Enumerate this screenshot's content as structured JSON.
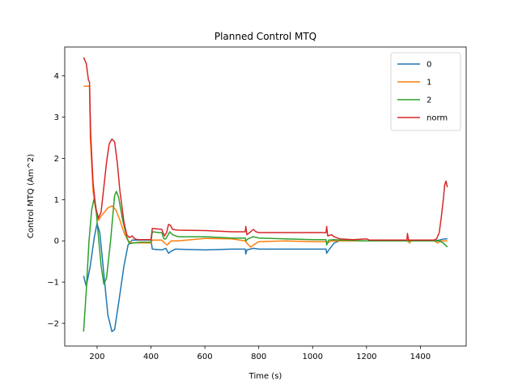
{
  "chart_data": {
    "type": "line",
    "title": "Planned Control MTQ",
    "xlabel": "Time (s)",
    "ylabel": "Control MTQ (Am^2)",
    "xlim": [
      80,
      1570
    ],
    "ylim": [
      -2.55,
      4.7
    ],
    "xticks": [
      200,
      400,
      600,
      800,
      1000,
      1200,
      1400
    ],
    "yticks": [
      -2,
      -1,
      0,
      1,
      2,
      3,
      4
    ],
    "xtick_labels": [
      "200",
      "400",
      "600",
      "800",
      "1000",
      "1200",
      "1400"
    ],
    "ytick_labels": [
      "−2",
      "−1",
      "0",
      "1",
      "2",
      "3",
      "4"
    ],
    "grid": false,
    "legend_position": "top-right",
    "series": [
      {
        "name": "0",
        "color": "#1f77b4",
        "points": [
          [
            150,
            -0.85
          ],
          [
            160,
            -1.1
          ],
          [
            175,
            -0.6
          ],
          [
            190,
            0.1
          ],
          [
            200,
            0.42
          ],
          [
            210,
            0.2
          ],
          [
            225,
            -0.8
          ],
          [
            240,
            -1.8
          ],
          [
            255,
            -2.2
          ],
          [
            265,
            -2.15
          ],
          [
            280,
            -1.5
          ],
          [
            300,
            -0.6
          ],
          [
            315,
            -0.1
          ],
          [
            330,
            0.02
          ],
          [
            350,
            0.02
          ],
          [
            400,
            0.02
          ],
          [
            405,
            -0.2
          ],
          [
            440,
            -0.22
          ],
          [
            455,
            -0.18
          ],
          [
            465,
            -0.3
          ],
          [
            475,
            -0.25
          ],
          [
            490,
            -0.2
          ],
          [
            600,
            -0.22
          ],
          [
            700,
            -0.2
          ],
          [
            750,
            -0.2
          ],
          [
            752,
            -0.32
          ],
          [
            756,
            -0.22
          ],
          [
            780,
            -0.18
          ],
          [
            800,
            -0.2
          ],
          [
            900,
            -0.2
          ],
          [
            1000,
            -0.2
          ],
          [
            1050,
            -0.2
          ],
          [
            1052,
            -0.3
          ],
          [
            1060,
            -0.22
          ],
          [
            1080,
            -0.05
          ],
          [
            1100,
            0.0
          ],
          [
            1200,
            0.0
          ],
          [
            1300,
            0.0
          ],
          [
            1350,
            0.0
          ],
          [
            1400,
            0.0
          ],
          [
            1450,
            0.0
          ],
          [
            1470,
            0.02
          ],
          [
            1490,
            0.05
          ],
          [
            1500,
            0.05
          ]
        ]
      },
      {
        "name": "1",
        "color": "#ff7f0e",
        "points": [
          [
            150,
            3.75
          ],
          [
            172,
            3.75
          ],
          [
            175,
            2.5
          ],
          [
            185,
            1.2
          ],
          [
            195,
            0.75
          ],
          [
            205,
            0.5
          ],
          [
            215,
            0.6
          ],
          [
            240,
            0.8
          ],
          [
            255,
            0.85
          ],
          [
            270,
            0.75
          ],
          [
            285,
            0.5
          ],
          [
            300,
            0.2
          ],
          [
            315,
            0.0
          ],
          [
            330,
            -0.05
          ],
          [
            350,
            -0.05
          ],
          [
            400,
            -0.05
          ],
          [
            405,
            0.02
          ],
          [
            440,
            0.02
          ],
          [
            450,
            -0.05
          ],
          [
            460,
            -0.1
          ],
          [
            475,
            0.0
          ],
          [
            500,
            0.0
          ],
          [
            600,
            0.06
          ],
          [
            700,
            0.05
          ],
          [
            750,
            0.0
          ],
          [
            755,
            -0.05
          ],
          [
            770,
            -0.15
          ],
          [
            785,
            -0.08
          ],
          [
            800,
            -0.02
          ],
          [
            900,
            0.0
          ],
          [
            1000,
            -0.02
          ],
          [
            1050,
            -0.02
          ],
          [
            1055,
            -0.05
          ],
          [
            1070,
            0.0
          ],
          [
            1100,
            0.0
          ],
          [
            1200,
            0.0
          ],
          [
            1300,
            0.0
          ],
          [
            1350,
            0.0
          ],
          [
            1360,
            -0.05
          ],
          [
            1365,
            0.0
          ],
          [
            1400,
            0.0
          ],
          [
            1450,
            0.0
          ],
          [
            1465,
            -0.05
          ],
          [
            1475,
            0.0
          ],
          [
            1500,
            0.0
          ]
        ]
      },
      {
        "name": "2",
        "color": "#2ca02c",
        "points": [
          [
            150,
            -2.2
          ],
          [
            160,
            -1.2
          ],
          [
            170,
            0.0
          ],
          [
            180,
            0.75
          ],
          [
            188,
            1.0
          ],
          [
            195,
            0.85
          ],
          [
            205,
            0.1
          ],
          [
            215,
            -0.6
          ],
          [
            225,
            -1.05
          ],
          [
            235,
            -0.9
          ],
          [
            250,
            0.0
          ],
          [
            265,
            1.1
          ],
          [
            272,
            1.2
          ],
          [
            280,
            1.05
          ],
          [
            295,
            0.5
          ],
          [
            310,
            0.1
          ],
          [
            320,
            -0.07
          ],
          [
            335,
            -0.05
          ],
          [
            360,
            -0.03
          ],
          [
            400,
            -0.03
          ],
          [
            405,
            0.22
          ],
          [
            430,
            0.2
          ],
          [
            440,
            0.2
          ],
          [
            448,
            0.05
          ],
          [
            455,
            0.05
          ],
          [
            470,
            0.22
          ],
          [
            480,
            0.15
          ],
          [
            500,
            0.1
          ],
          [
            600,
            0.1
          ],
          [
            700,
            0.07
          ],
          [
            750,
            0.07
          ],
          [
            752,
            0.0
          ],
          [
            760,
            0.05
          ],
          [
            780,
            0.1
          ],
          [
            800,
            0.07
          ],
          [
            900,
            0.05
          ],
          [
            1000,
            0.03
          ],
          [
            1050,
            0.03
          ],
          [
            1052,
            -0.1
          ],
          [
            1060,
            0.02
          ],
          [
            1080,
            0.03
          ],
          [
            1100,
            0.02
          ],
          [
            1200,
            0.0
          ],
          [
            1300,
            0.0
          ],
          [
            1400,
            0.0
          ],
          [
            1450,
            0.0
          ],
          [
            1470,
            0.0
          ],
          [
            1485,
            -0.05
          ],
          [
            1500,
            -0.15
          ]
        ]
      },
      {
        "name": "norm",
        "color": "#d62728",
        "points": [
          [
            150,
            4.45
          ],
          [
            160,
            4.3
          ],
          [
            168,
            3.9
          ],
          [
            172,
            3.85
          ],
          [
            176,
            2.6
          ],
          [
            185,
            1.4
          ],
          [
            195,
            0.8
          ],
          [
            205,
            0.55
          ],
          [
            215,
            0.7
          ],
          [
            225,
            1.3
          ],
          [
            235,
            1.9
          ],
          [
            245,
            2.35
          ],
          [
            255,
            2.47
          ],
          [
            265,
            2.4
          ],
          [
            275,
            1.9
          ],
          [
            285,
            1.2
          ],
          [
            300,
            0.45
          ],
          [
            310,
            0.15
          ],
          [
            320,
            0.08
          ],
          [
            330,
            0.12
          ],
          [
            340,
            0.05
          ],
          [
            350,
            0.03
          ],
          [
            400,
            0.03
          ],
          [
            405,
            0.3
          ],
          [
            440,
            0.28
          ],
          [
            450,
            0.12
          ],
          [
            458,
            0.2
          ],
          [
            465,
            0.4
          ],
          [
            472,
            0.38
          ],
          [
            480,
            0.28
          ],
          [
            500,
            0.26
          ],
          [
            600,
            0.25
          ],
          [
            700,
            0.22
          ],
          [
            750,
            0.22
          ],
          [
            752,
            0.35
          ],
          [
            756,
            0.15
          ],
          [
            770,
            0.22
          ],
          [
            780,
            0.28
          ],
          [
            790,
            0.22
          ],
          [
            800,
            0.2
          ],
          [
            900,
            0.2
          ],
          [
            1000,
            0.2
          ],
          [
            1050,
            0.2
          ],
          [
            1052,
            0.35
          ],
          [
            1056,
            0.12
          ],
          [
            1070,
            0.15
          ],
          [
            1080,
            0.1
          ],
          [
            1100,
            0.05
          ],
          [
            1150,
            0.03
          ],
          [
            1200,
            0.05
          ],
          [
            1210,
            0.02
          ],
          [
            1300,
            0.02
          ],
          [
            1350,
            0.02
          ],
          [
            1352,
            0.18
          ],
          [
            1356,
            0.02
          ],
          [
            1400,
            0.02
          ],
          [
            1450,
            0.02
          ],
          [
            1460,
            0.05
          ],
          [
            1470,
            0.2
          ],
          [
            1478,
            0.6
          ],
          [
            1485,
            1.0
          ],
          [
            1490,
            1.35
          ],
          [
            1495,
            1.45
          ],
          [
            1500,
            1.3
          ]
        ]
      }
    ]
  }
}
